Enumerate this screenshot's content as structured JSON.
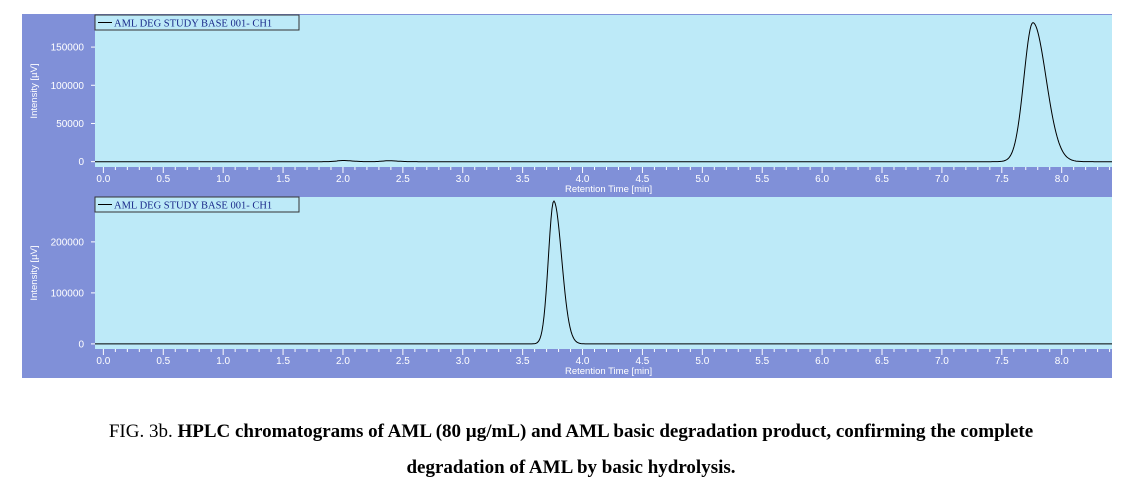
{
  "colors": {
    "frame": "#8090d8",
    "plot_bg": "#bdeaf8",
    "line": "#000000",
    "axis_text": "#ffffff"
  },
  "chart_data": [
    {
      "type": "line",
      "title": "",
      "legend": "AML DEG STUDY BASE 001- CH1",
      "legend_position": "top-left",
      "xlabel": "Retention Time [min]",
      "ylabel": "Intensity [µV]",
      "xlim": [
        -0.07,
        8.42
      ],
      "ylim": [
        -7000,
        192000
      ],
      "xticks": [
        "0.0",
        "0.5",
        "1.0",
        "1.5",
        "2.0",
        "2.5",
        "3.0",
        "3.5",
        "4.0",
        "4.5",
        "5.0",
        "5.5",
        "6.0",
        "6.5",
        "7.0",
        "7.5",
        "8.0"
      ],
      "yticks": [
        "0",
        "50000",
        "100000",
        "150000"
      ],
      "grid": false,
      "peaks": [
        {
          "rt": 2.0,
          "height": 1500,
          "width": 0.05
        },
        {
          "rt": 2.38,
          "height": 1200,
          "width": 0.05
        },
        {
          "rt": 7.76,
          "height": 182000,
          "width": 0.075
        }
      ]
    },
    {
      "type": "line",
      "title": "",
      "legend": "AML DEG STUDY BASE 001- CH1",
      "legend_position": "top-left",
      "xlabel": "Retention Time [min]",
      "ylabel": "Intensity [µV]",
      "xlim": [
        -0.07,
        8.42
      ],
      "ylim": [
        -10000,
        288000
      ],
      "xticks": [
        "0.0",
        "0.5",
        "1.0",
        "1.5",
        "2.0",
        "2.5",
        "3.0",
        "3.5",
        "4.0",
        "4.5",
        "5.0",
        "5.5",
        "6.0",
        "6.5",
        "7.0",
        "7.5",
        "8.0"
      ],
      "yticks": [
        "0",
        "100000",
        "200000"
      ],
      "grid": false,
      "peaks": [
        {
          "rt": 3.76,
          "height": 280000,
          "width": 0.045
        }
      ]
    }
  ],
  "caption": {
    "prefix": "FIG. 3b. ",
    "bold_line1": "HPLC chromatograms of AML (80 µg/mL) and AML basic degradation product, confirming the complete",
    "bold_line2": "degradation of AML by basic hydrolysis."
  }
}
